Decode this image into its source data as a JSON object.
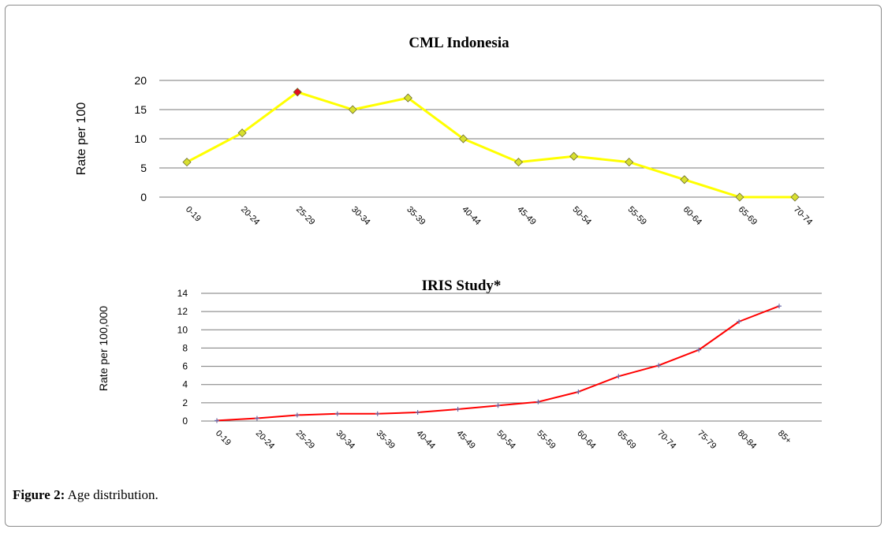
{
  "caption": {
    "label": "Figure 2:",
    "text": " Age distribution."
  },
  "chart_data": [
    {
      "type": "line",
      "title": "CML Indonesia",
      "ylabel": "Rate per 100",
      "xlabel": "",
      "ylim": [
        0,
        20
      ],
      "yticks": [
        0,
        5,
        10,
        15,
        20
      ],
      "grid": true,
      "categories": [
        "0-19",
        "20-24",
        "25-29",
        "30-34",
        "35-39",
        "40-44",
        "45-49",
        "50-54",
        "55-59",
        "60-64",
        "65-69",
        "70-74"
      ],
      "series": [
        {
          "values": [
            6,
            11,
            18,
            15,
            17,
            10,
            6,
            7,
            6,
            3,
            0,
            0
          ],
          "color": "#ffff00",
          "marker": "diamond",
          "marker_color": "#d8e030",
          "highlight_index": 2,
          "highlight_color": "#e01020"
        }
      ]
    },
    {
      "type": "line",
      "title": "IRIS Study*",
      "ylabel": "Rate per 100,000",
      "xlabel": "",
      "ylim": [
        0,
        14
      ],
      "yticks": [
        0,
        2,
        4,
        6,
        8,
        10,
        12,
        14
      ],
      "grid": true,
      "categories": [
        "0-19",
        "20-24",
        "25-29",
        "30-34",
        "35-39",
        "40-44",
        "45-49",
        "50-54",
        "55-59",
        "60-64",
        "65-69",
        "70-74",
        "75-79",
        "80-84",
        "85+"
      ],
      "series": [
        {
          "values": [
            0.05,
            0.3,
            0.65,
            0.8,
            0.8,
            0.95,
            1.3,
            1.7,
            2.1,
            3.2,
            4.9,
            6.1,
            7.8,
            10.9,
            12.6
          ],
          "color": "#ff0000",
          "marker": "plus",
          "marker_color": "#6a6aa8"
        }
      ]
    }
  ]
}
